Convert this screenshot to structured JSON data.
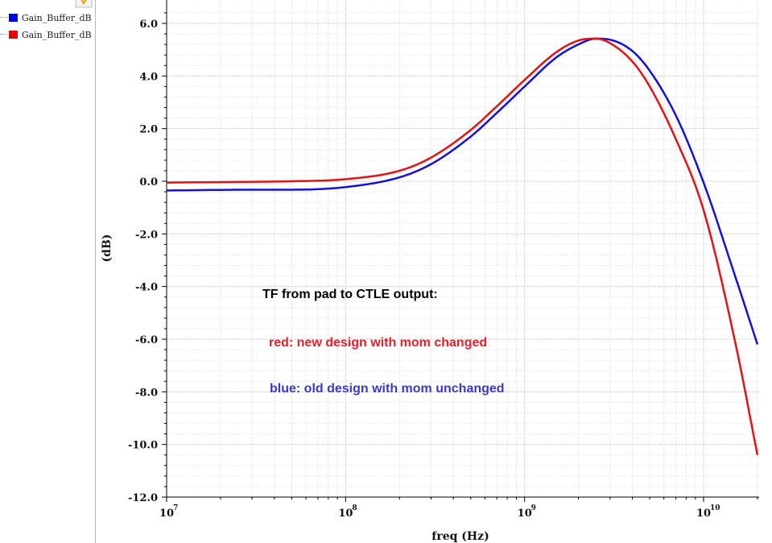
{
  "sidebar": {
    "legend": [
      {
        "label": "Gain_Buffer_dB",
        "color": "#0000ee"
      },
      {
        "label": "Gain_Buffer_dB",
        "color": "#ee0000"
      }
    ],
    "marker_icon": "marker-pin-icon"
  },
  "colors": {
    "blue": "#1010e0",
    "red": "#e81010",
    "grid": "#d8d8d8",
    "annotation_black": "#000000",
    "annotation_red": "#e8202a",
    "annotation_blue": "#3a3ac8"
  },
  "annotations": {
    "title": "TF from pad to CTLE output:",
    "red_note": "red: new design with mom changed",
    "blue_note": "blue: old design with mom unchanged"
  },
  "chart_data": {
    "type": "line",
    "xlabel": "freq (Hz)",
    "ylabel": "(dB)",
    "xscale": "log",
    "xlim": [
      10000000.0,
      20000000000.0
    ],
    "ylim": [
      -12,
      6.5
    ],
    "grid": true,
    "yticks": [
      "6.0",
      "4.0",
      "2.0",
      "0.0",
      "-2.0",
      "-4.0",
      "-6.0",
      "-8.0",
      "-10.0",
      "-12.0"
    ],
    "xticks": [
      {
        "base": "10",
        "exp": "7"
      },
      {
        "base": "10",
        "exp": "8"
      },
      {
        "base": "10",
        "exp": "9"
      },
      {
        "base": "10",
        "exp": "10"
      }
    ],
    "series": [
      {
        "name": "blue",
        "color": "#1010e0",
        "x": [
          10000000.0,
          30000000.0,
          50000000.0,
          100000000.0,
          200000000.0,
          300000000.0,
          500000000.0,
          700000000.0,
          1000000000.0,
          1500000000.0,
          2000000000.0,
          2500000000.0,
          3000000000.0,
          4000000000.0,
          5000000000.0,
          7000000000.0,
          10000000000.0,
          15000000000.0,
          20000000000.0
        ],
        "y": [
          -0.35,
          -0.32,
          -0.32,
          -0.22,
          0.15,
          0.65,
          1.7,
          2.6,
          3.6,
          4.7,
          5.2,
          5.42,
          5.38,
          4.95,
          4.2,
          2.5,
          -0.05,
          -3.6,
          -6.2
        ]
      },
      {
        "name": "red",
        "color": "#e81010",
        "x": [
          10000000.0,
          30000000.0,
          50000000.0,
          100000000.0,
          200000000.0,
          300000000.0,
          500000000.0,
          700000000.0,
          1000000000.0,
          1500000000.0,
          2000000000.0,
          2500000000.0,
          3000000000.0,
          4000000000.0,
          5000000000.0,
          7000000000.0,
          10000000000.0,
          15000000000.0,
          20000000000.0
        ],
        "y": [
          -0.05,
          -0.02,
          0.0,
          0.08,
          0.4,
          0.9,
          1.95,
          2.85,
          3.85,
          4.9,
          5.35,
          5.42,
          5.25,
          4.55,
          3.6,
          1.6,
          -1.1,
          -6.1,
          -10.4
        ]
      }
    ]
  }
}
